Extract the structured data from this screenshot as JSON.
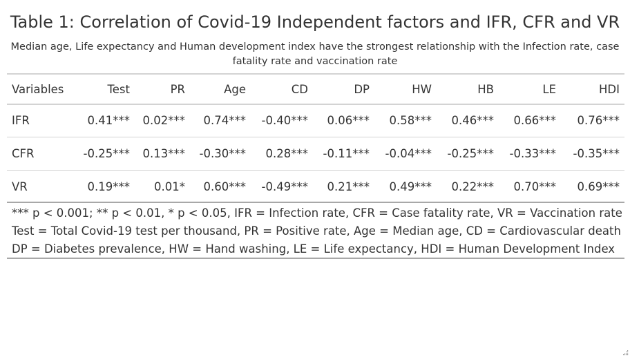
{
  "title": "Table 1: Correlation of Covid-19 Independent factors and IFR, CFR and VR",
  "subtitle": "Median age, Life expectancy and Human development index have the strongest relationship with the Infection rate, case fatality rate and vaccination rate",
  "columns": [
    "Variables",
    "Test",
    "PR",
    "Age",
    "CD",
    "DP",
    "HW",
    "HB",
    "LE",
    "HDI"
  ],
  "rows": [
    [
      "IFR",
      "0.41***",
      "0.02***",
      "0.74***",
      "-0.40***",
      "0.06***",
      "0.58***",
      "0.46***",
      "0.66***",
      "0.76***"
    ],
    [
      "CFR",
      "-0.25***",
      "0.13***",
      "-0.30***",
      "0.28***",
      "-0.11***",
      "-0.04***",
      "-0.25***",
      "-0.33***",
      "-0.35***"
    ],
    [
      "VR",
      "0.19***",
      "0.01*",
      "0.60***",
      "-0.49***",
      "0.21***",
      "0.49***",
      "0.22***",
      "0.70***",
      "0.69***"
    ]
  ],
  "notes": [
    "*** p < 0.001; ** p < 0.01, * p < 0.05, IFR = Infection rate, CFR = Case fatality rate, VR = Vaccination rate",
    "Test = Total Covid-19 test per thousand, PR = Positive rate, Age = Median age, CD = Cardiovascular death",
    "DP = Diabetes prevalence, HW = Hand washing, LE = Life expectancy, HDI = Human Development Index"
  ]
}
